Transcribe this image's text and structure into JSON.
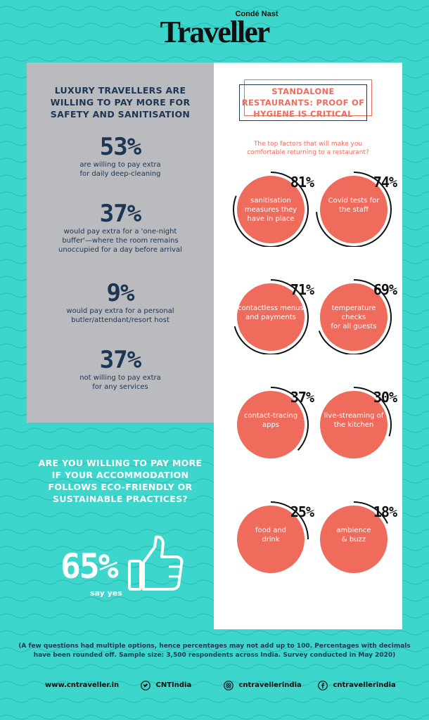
{
  "brand": {
    "sub": "Condé Nast",
    "main": "Traveller"
  },
  "left": {
    "title": "LUXURY TRAVELLERS ARE\nWILLING TO PAY MORE FOR\nSAFETY AND SANITISATION",
    "stats": [
      {
        "pct": "53%",
        "desc": "are willing to pay extra\nfor daily deep-cleaning"
      },
      {
        "pct": "37%",
        "desc": "would pay extra for a 'one-night\nbuffer'—where the room remains\nunoccupied for a day before arrival"
      },
      {
        "pct": "9%",
        "desc": "would pay extra for a personal\nbutler/attendant/resort host"
      },
      {
        "pct": "37%",
        "desc": "not willing to pay extra\nfor any services"
      }
    ]
  },
  "eco": {
    "question": "ARE YOU WILLING TO PAY MORE\nIF YOUR ACCOMMODATION\nFOLLOWS ECO-FRIENDLY OR\nSUSTAINABLE PRACTICES?",
    "pct": "65%",
    "sub": "say yes",
    "thumb_icon": "thumbs-up-icon"
  },
  "restaurants": {
    "title": "STANDALONE\nRESTAURANTS: PROOF OF\nHYGIENE IS CRITICAL",
    "subtitle": "The top factors that will make you\ncomfortable returning to a restaurant?",
    "factors": [
      {
        "pct": "81%",
        "value": 81,
        "label": "sanitisation\nmeasures they\nhave in place"
      },
      {
        "pct": "74%",
        "value": 74,
        "label": "Covid tests for\nthe staff"
      },
      {
        "pct": "71%",
        "value": 71,
        "label": "contactless menus\nand payments"
      },
      {
        "pct": "69%",
        "value": 69,
        "label": "temperature\nchecks\nfor all guests"
      },
      {
        "pct": "37%",
        "value": 37,
        "label": "contact-tracing\napps"
      },
      {
        "pct": "30%",
        "value": 30,
        "label": "live-streaming of\nthe kitchen"
      },
      {
        "pct": "25%",
        "value": 25,
        "label": "food and\ndrink"
      },
      {
        "pct": "18%",
        "value": 18,
        "label": "ambience\n& buzz"
      }
    ]
  },
  "footnote": "(A few questions had multiple options, hence percentages may not add up to 100. Percentages with decimals have been rounded off. Sample size: 3,500 respondents across India. Survey conducted in May 2020)",
  "social": {
    "website": "www.cntraveller.in",
    "twitter": "CNTIndia",
    "instagram": "cntravellerindia",
    "facebook": "cntravellerindia"
  },
  "colors": {
    "teal": "#3dd6cc",
    "coral": "#ef6b5c",
    "navy": "#1f3554",
    "grey": "#b9bbbe"
  }
}
